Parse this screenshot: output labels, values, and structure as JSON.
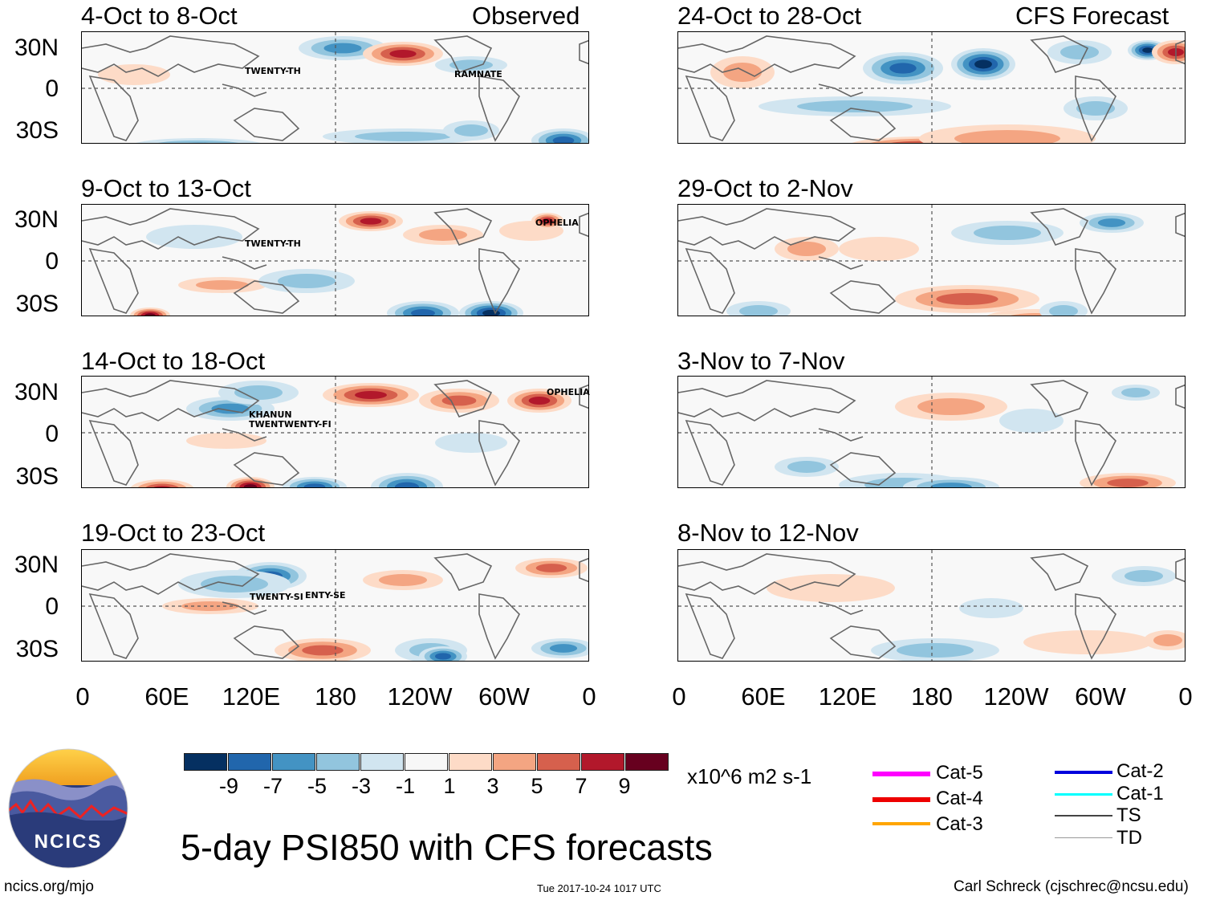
{
  "header": {
    "observed_label": "Observed",
    "forecast_label": "CFS Forecast"
  },
  "lat_labels": [
    "30N",
    "0",
    "30S"
  ],
  "lon_labels": [
    "0",
    "60E",
    "120E",
    "180",
    "120W",
    "60W",
    "0"
  ],
  "panels_left": [
    {
      "title": "4-Oct to 8-Oct",
      "storms": [
        "TWENTY-TH",
        "RAMNATE"
      ]
    },
    {
      "title": "9-Oct to 13-Oct",
      "storms": [
        "TWENTY-TH",
        "OPHELIA"
      ]
    },
    {
      "title": "14-Oct to 18-Oct",
      "storms": [
        "KHANUN",
        "TWENTWENTY-FI",
        "OPHELIA"
      ]
    },
    {
      "title": "19-Oct to 23-Oct",
      "storms": [
        "TWENTY-SI",
        "ENTY-SE"
      ]
    }
  ],
  "panels_right": [
    {
      "title": "24-Oct to 28-Oct"
    },
    {
      "title": "29-Oct to 2-Nov"
    },
    {
      "title": "3-Nov to 7-Nov"
    },
    {
      "title": "8-Nov to 12-Nov"
    }
  ],
  "colorbar": {
    "colors": [
      "#053061",
      "#2166ac",
      "#4393c3",
      "#92c5de",
      "#d1e5f0",
      "#f7f7f7",
      "#fddbc7",
      "#f4a582",
      "#d6604d",
      "#b2182b",
      "#67001f"
    ],
    "labels": [
      "-9",
      "-7",
      "-5",
      "-3",
      "-1",
      "1",
      "3",
      "5",
      "7",
      "9"
    ],
    "units": "x10^6 m2 s-1"
  },
  "legend": {
    "items": [
      {
        "label": "Cat-5",
        "color": "#ff00ff"
      },
      {
        "label": "Cat-4",
        "color": "#ee0000"
      },
      {
        "label": "Cat-3",
        "color": "#ffa500"
      },
      {
        "label": "Cat-2",
        "color": "#0000dd"
      },
      {
        "label": "Cat-1",
        "color": "#00ffff"
      },
      {
        "label": "TS",
        "color": "#444444"
      },
      {
        "label": "TD",
        "color": "#999999"
      }
    ]
  },
  "logo": {
    "text": "NCICS"
  },
  "main_title": "5-day PSI850 with CFS forecasts",
  "footer": {
    "url": "ncics.org/mjo",
    "timestamp": "Tue 2017-10-24 1017 UTC",
    "author": "Carl Schreck (cjschrec@ncsu.edu)"
  }
}
